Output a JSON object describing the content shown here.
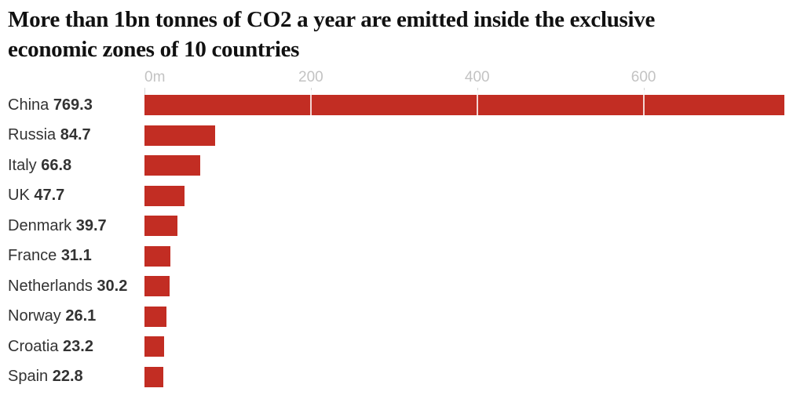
{
  "title": {
    "line1": "More than 1bn tonnes of CO2 a year are emitted inside the exclusive",
    "line2": "economic zones of 10 countries"
  },
  "chart_data": {
    "type": "bar",
    "orientation": "horizontal",
    "title": "More than 1bn tonnes of CO2 a year are emitted inside the exclusive economic zones of 10 countries",
    "categories": [
      "China",
      "Russia",
      "Italy",
      "UK",
      "Denmark",
      "France",
      "Netherlands",
      "Norway",
      "Croatia",
      "Spain"
    ],
    "values": [
      769.3,
      84.7,
      66.8,
      47.7,
      39.7,
      31.1,
      30.2,
      26.1,
      23.2,
      22.8
    ],
    "value_labels": [
      "769.3",
      "84.7",
      "66.8",
      "47.7",
      "39.7",
      "31.1",
      "30.2",
      "26.1",
      "23.2",
      "22.8"
    ],
    "x_ticks": [
      {
        "label": "0m",
        "value": 0
      },
      {
        "label": "200",
        "value": 200
      },
      {
        "label": "400",
        "value": 400
      },
      {
        "label": "600",
        "value": 600
      }
    ],
    "xlim": [
      0,
      769.3
    ],
    "grid": "vertical-lines-visible-over-bars-only",
    "legend": false
  },
  "colors": {
    "bar": "#c22d23",
    "title_text": "#111111",
    "label_text": "#333333",
    "axis_text": "#c3c3c3",
    "tick_mark": "#d6d6d6",
    "gridline_over_bar": "rgba(255,255,255,0.8)"
  }
}
